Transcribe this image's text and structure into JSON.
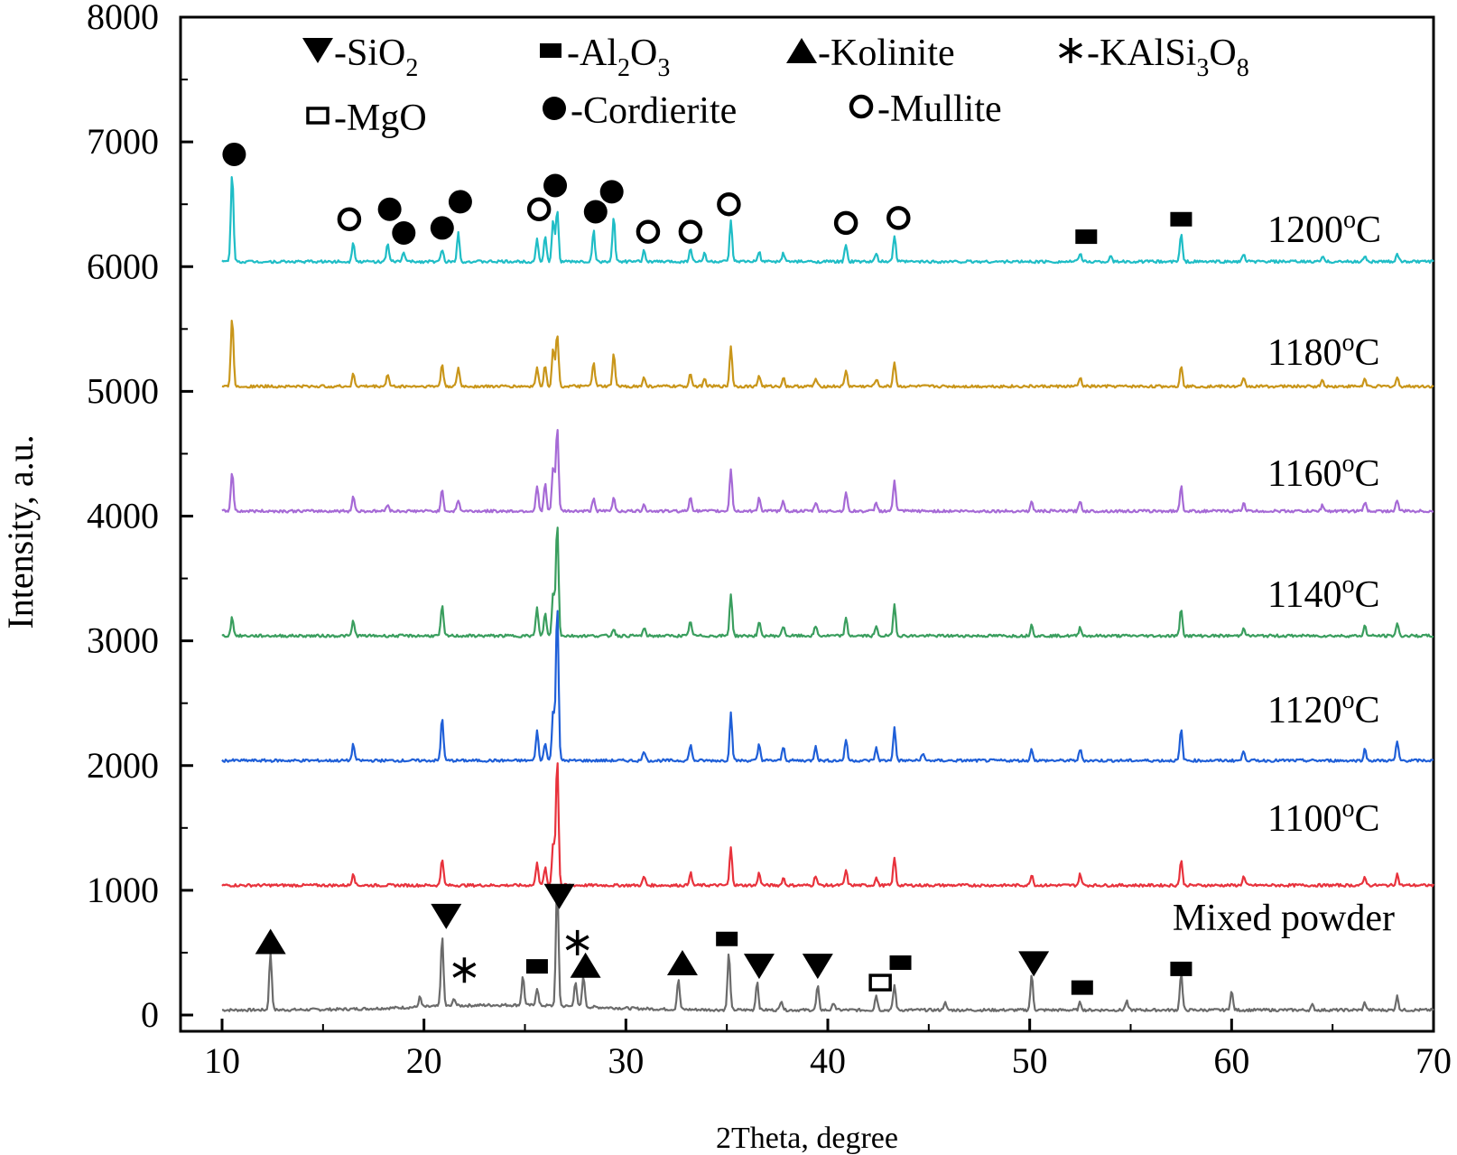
{
  "chart_data": {
    "type": "line",
    "xlabel": "2Theta, degree",
    "ylabel": "Intensity, a.u.",
    "xlim": [
      8,
      70
    ],
    "ylim": [
      -50,
      8000
    ],
    "x_ticks": [
      10,
      20,
      30,
      40,
      50,
      60,
      70
    ],
    "y_ticks": [
      0,
      1000,
      2000,
      3000,
      4000,
      5000,
      6000,
      7000,
      8000
    ],
    "grid": false,
    "legend_placement": "top",
    "legend": [
      {
        "marker": "down-triangle",
        "label": "-SiO",
        "sub": "2",
        "rest": ""
      },
      {
        "marker": "filled-square",
        "label": "-Al",
        "sub": "2",
        "rest": "O",
        "sub2": "3"
      },
      {
        "marker": "up-triangle",
        "label": "-Kolinite",
        "sub": "",
        "rest": ""
      },
      {
        "marker": "asterisk",
        "label": "-KAlSi",
        "sub": "3",
        "rest": "O",
        "sub2": "8"
      },
      {
        "marker": "open-square",
        "label": "-MgO",
        "sub": "",
        "rest": ""
      },
      {
        "marker": "filled-circle",
        "label": "-Cordierite",
        "sub": "",
        "rest": ""
      },
      {
        "marker": "open-circle",
        "label": "-Mullite",
        "sub": "",
        "rest": ""
      }
    ],
    "series": [
      {
        "name": "Mixed powder",
        "label_text": "Mixed powder",
        "color": "#6b6b6b",
        "baseline": 40,
        "peaks": [
          [
            12.4,
            460
          ],
          [
            19.8,
            80
          ],
          [
            20.9,
            560
          ],
          [
            21.5,
            60
          ],
          [
            24.9,
            230
          ],
          [
            25.6,
            140
          ],
          [
            26.6,
            1010
          ],
          [
            27.5,
            200
          ],
          [
            27.9,
            250
          ],
          [
            32.6,
            240
          ],
          [
            35.1,
            460
          ],
          [
            36.5,
            230
          ],
          [
            37.7,
            80
          ],
          [
            39.5,
            190
          ],
          [
            40.3,
            60
          ],
          [
            42.4,
            120
          ],
          [
            43.3,
            200
          ],
          [
            45.8,
            60
          ],
          [
            50.1,
            280
          ],
          [
            52.5,
            60
          ],
          [
            54.8,
            70
          ],
          [
            57.5,
            300
          ],
          [
            60.0,
            150
          ],
          [
            64.0,
            40
          ],
          [
            66.6,
            60
          ],
          [
            68.2,
            110
          ]
        ],
        "markers": [
          {
            "x": 12.4,
            "y": 590,
            "m": "up-triangle"
          },
          {
            "x": 21.1,
            "y": 790,
            "m": "down-triangle"
          },
          {
            "x": 22.0,
            "y": 360,
            "m": "asterisk"
          },
          {
            "x": 25.6,
            "y": 390,
            "m": "filled-square"
          },
          {
            "x": 26.7,
            "y": 950,
            "m": "down-triangle"
          },
          {
            "x": 27.6,
            "y": 580,
            "m": "asterisk"
          },
          {
            "x": 28.0,
            "y": 400,
            "m": "up-triangle"
          },
          {
            "x": 32.8,
            "y": 420,
            "m": "up-triangle"
          },
          {
            "x": 35.0,
            "y": 610,
            "m": "filled-square"
          },
          {
            "x": 36.6,
            "y": 390,
            "m": "down-triangle"
          },
          {
            "x": 39.5,
            "y": 390,
            "m": "down-triangle"
          },
          {
            "x": 42.6,
            "y": 260,
            "m": "open-square"
          },
          {
            "x": 43.6,
            "y": 420,
            "m": "filled-square"
          },
          {
            "x": 50.2,
            "y": 410,
            "m": "down-triangle"
          },
          {
            "x": 52.6,
            "y": 220,
            "m": "filled-square"
          },
          {
            "x": 57.5,
            "y": 370,
            "m": "filled-square"
          }
        ]
      },
      {
        "name": "1100°C",
        "label_text": "1100",
        "label_sup": "o",
        "label_tail": "C",
        "color": "#e8323c",
        "baseline": 1040,
        "peaks": [
          [
            16.5,
            100
          ],
          [
            20.9,
            220
          ],
          [
            25.6,
            190
          ],
          [
            26.0,
            140
          ],
          [
            26.4,
            350
          ],
          [
            26.6,
            1030
          ],
          [
            30.9,
            70
          ],
          [
            33.2,
            100
          ],
          [
            35.2,
            300
          ],
          [
            36.6,
            100
          ],
          [
            37.8,
            60
          ],
          [
            39.4,
            80
          ],
          [
            40.9,
            120
          ],
          [
            42.4,
            60
          ],
          [
            43.3,
            220
          ],
          [
            50.1,
            90
          ],
          [
            52.5,
            90
          ],
          [
            57.5,
            200
          ],
          [
            60.6,
            70
          ],
          [
            66.6,
            70
          ],
          [
            68.2,
            90
          ]
        ],
        "markers": []
      },
      {
        "name": "1120°C",
        "label_text": "1120",
        "label_sup": "o",
        "label_tail": "C",
        "color": "#1f5fd8",
        "baseline": 2040,
        "peaks": [
          [
            16.5,
            130
          ],
          [
            20.9,
            350
          ],
          [
            25.6,
            240
          ],
          [
            26.0,
            150
          ],
          [
            26.4,
            400
          ],
          [
            26.6,
            1260
          ],
          [
            30.9,
            80
          ],
          [
            33.2,
            130
          ],
          [
            35.2,
            380
          ],
          [
            36.6,
            130
          ],
          [
            37.8,
            110
          ],
          [
            39.4,
            120
          ],
          [
            40.9,
            170
          ],
          [
            42.4,
            100
          ],
          [
            43.3,
            260
          ],
          [
            44.7,
            60
          ],
          [
            50.1,
            90
          ],
          [
            52.5,
            90
          ],
          [
            57.5,
            250
          ],
          [
            60.6,
            80
          ],
          [
            66.6,
            90
          ],
          [
            68.2,
            150
          ]
        ],
        "markers": []
      },
      {
        "name": "1140°C",
        "label_text": "1140",
        "label_sup": "o",
        "label_tail": "C",
        "color": "#3a9e5e",
        "baseline": 3040,
        "peaks": [
          [
            10.5,
            150
          ],
          [
            16.5,
            120
          ],
          [
            20.9,
            240
          ],
          [
            25.6,
            220
          ],
          [
            26.0,
            180
          ],
          [
            26.4,
            350
          ],
          [
            26.6,
            920
          ],
          [
            29.4,
            60
          ],
          [
            30.9,
            60
          ],
          [
            33.2,
            120
          ],
          [
            35.2,
            340
          ],
          [
            36.6,
            110
          ],
          [
            37.8,
            80
          ],
          [
            39.4,
            80
          ],
          [
            40.9,
            140
          ],
          [
            42.4,
            70
          ],
          [
            43.3,
            250
          ],
          [
            50.1,
            90
          ],
          [
            52.5,
            70
          ],
          [
            57.5,
            220
          ],
          [
            60.6,
            70
          ],
          [
            66.6,
            80
          ],
          [
            68.2,
            100
          ]
        ],
        "markers": []
      },
      {
        "name": "1160°C",
        "label_text": "1160",
        "label_sup": "o",
        "label_tail": "C",
        "color": "#a66ad6",
        "baseline": 4040,
        "peaks": [
          [
            10.5,
            320
          ],
          [
            16.5,
            120
          ],
          [
            18.2,
            60
          ],
          [
            20.9,
            170
          ],
          [
            21.7,
            90
          ],
          [
            25.6,
            200
          ],
          [
            26.0,
            220
          ],
          [
            26.4,
            360
          ],
          [
            26.6,
            680
          ],
          [
            28.4,
            110
          ],
          [
            29.4,
            110
          ],
          [
            30.9,
            60
          ],
          [
            33.2,
            120
          ],
          [
            35.2,
            340
          ],
          [
            36.6,
            110
          ],
          [
            37.8,
            80
          ],
          [
            39.4,
            70
          ],
          [
            40.9,
            150
          ],
          [
            42.4,
            70
          ],
          [
            43.3,
            250
          ],
          [
            50.1,
            70
          ],
          [
            52.5,
            80
          ],
          [
            57.5,
            200
          ],
          [
            60.6,
            70
          ],
          [
            64.5,
            50
          ],
          [
            66.6,
            70
          ],
          [
            68.2,
            90
          ]
        ],
        "markers": []
      },
      {
        "name": "1180°C",
        "label_text": "1180",
        "label_sup": "o",
        "label_tail": "C",
        "color": "#c9961a",
        "baseline": 5040,
        "peaks": [
          [
            10.5,
            560
          ],
          [
            16.5,
            100
          ],
          [
            18.2,
            100
          ],
          [
            20.9,
            180
          ],
          [
            21.7,
            150
          ],
          [
            25.6,
            160
          ],
          [
            26.0,
            170
          ],
          [
            26.4,
            300
          ],
          [
            26.6,
            430
          ],
          [
            28.4,
            200
          ],
          [
            29.4,
            260
          ],
          [
            30.9,
            70
          ],
          [
            33.2,
            110
          ],
          [
            33.9,
            60
          ],
          [
            35.2,
            320
          ],
          [
            36.6,
            90
          ],
          [
            37.8,
            70
          ],
          [
            39.4,
            60
          ],
          [
            40.9,
            130
          ],
          [
            42.4,
            60
          ],
          [
            43.3,
            200
          ],
          [
            52.5,
            70
          ],
          [
            57.5,
            170
          ],
          [
            60.6,
            60
          ],
          [
            64.5,
            50
          ],
          [
            66.6,
            60
          ],
          [
            68.2,
            70
          ]
        ],
        "markers": []
      },
      {
        "name": "1200°C",
        "label_text": "1200",
        "label_sup": "o",
        "label_tail": "C",
        "color": "#1fbdc6",
        "baseline": 6040,
        "peaks": [
          [
            10.5,
            720
          ],
          [
            16.5,
            160
          ],
          [
            18.2,
            140
          ],
          [
            19.0,
            80
          ],
          [
            20.9,
            100
          ],
          [
            21.7,
            230
          ],
          [
            25.6,
            180
          ],
          [
            26.0,
            200
          ],
          [
            26.4,
            330
          ],
          [
            26.6,
            420
          ],
          [
            28.4,
            250
          ],
          [
            29.4,
            350
          ],
          [
            30.9,
            90
          ],
          [
            33.2,
            110
          ],
          [
            33.9,
            70
          ],
          [
            35.2,
            320
          ],
          [
            36.6,
            80
          ],
          [
            37.8,
            70
          ],
          [
            40.9,
            140
          ],
          [
            42.4,
            60
          ],
          [
            43.3,
            210
          ],
          [
            52.5,
            70
          ],
          [
            54.0,
            40
          ],
          [
            57.5,
            220
          ],
          [
            60.6,
            60
          ],
          [
            64.5,
            40
          ],
          [
            66.6,
            50
          ],
          [
            68.2,
            70
          ]
        ],
        "markers": [
          {
            "x": 10.6,
            "y": 6900,
            "m": "filled-circle"
          },
          {
            "x": 16.3,
            "y": 6380,
            "m": "open-circle"
          },
          {
            "x": 18.3,
            "y": 6460,
            "m": "filled-circle"
          },
          {
            "x": 19.0,
            "y": 6270,
            "m": "filled-circle"
          },
          {
            "x": 20.9,
            "y": 6310,
            "m": "filled-circle"
          },
          {
            "x": 21.8,
            "y": 6520,
            "m": "filled-circle"
          },
          {
            "x": 25.7,
            "y": 6460,
            "m": "open-circle"
          },
          {
            "x": 26.5,
            "y": 6650,
            "m": "filled-circle"
          },
          {
            "x": 28.5,
            "y": 6440,
            "m": "filled-circle"
          },
          {
            "x": 29.3,
            "y": 6600,
            "m": "filled-circle"
          },
          {
            "x": 31.1,
            "y": 6280,
            "m": "open-circle"
          },
          {
            "x": 33.2,
            "y": 6280,
            "m": "open-circle"
          },
          {
            "x": 35.1,
            "y": 6500,
            "m": "open-circle"
          },
          {
            "x": 40.9,
            "y": 6350,
            "m": "open-circle"
          },
          {
            "x": 43.5,
            "y": 6390,
            "m": "open-circle"
          },
          {
            "x": 52.8,
            "y": 6240,
            "m": "filled-square"
          },
          {
            "x": 57.5,
            "y": 6380,
            "m": "filled-square"
          }
        ]
      }
    ]
  }
}
